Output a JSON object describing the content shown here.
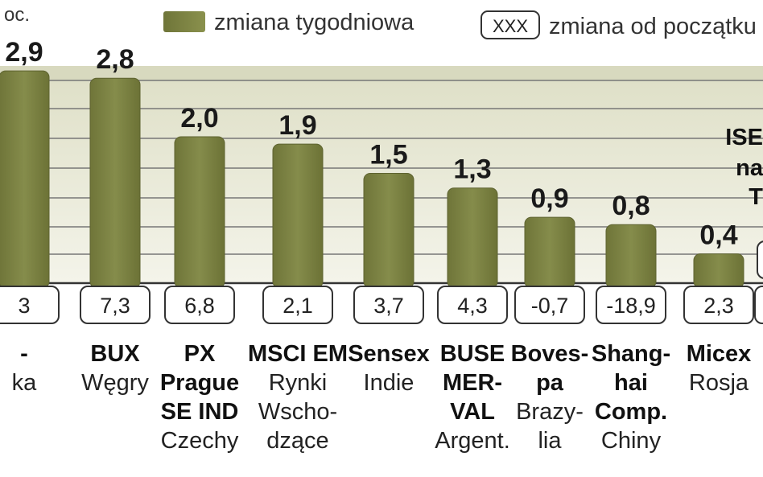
{
  "unit_label": "oc.",
  "legend": {
    "weekly_label": "zmiana tygodniowa",
    "ytd_box_text": "XXX",
    "ytd_label": "zmiana od początku"
  },
  "colors": {
    "bar": "#7a8043",
    "bar_top": "#8d9450",
    "band": "#e6e7d4",
    "gridline": "#555555",
    "box_border": "#333333"
  },
  "chart_data": {
    "type": "bar",
    "series": [
      {
        "name": "zmiana tygodniowa",
        "values": [
          2.9,
          2.8,
          2.0,
          1.9,
          1.5,
          1.3,
          0.9,
          0.8,
          0.4
        ]
      },
      {
        "name": "zmiana od początku",
        "values": [
          "3",
          "7,3",
          "6,8",
          "2,1",
          "3,7",
          "4,3",
          "-0,7",
          "-18,9",
          "2,3"
        ]
      }
    ],
    "value_labels": [
      "2,9",
      "2,8",
      "2,0",
      "1,9",
      "1,5",
      "1,3",
      "0,9",
      "0,8",
      "0,4"
    ],
    "names": [
      {
        "bold": [
          "-"
        ],
        "regular": [
          "ka"
        ]
      },
      {
        "bold": [
          "BUX"
        ],
        "regular": [
          "Węgry"
        ]
      },
      {
        "bold": [
          "PX",
          "Prague",
          "SE IND"
        ],
        "regular": [
          "Czechy"
        ]
      },
      {
        "bold": [
          "MSCI EM"
        ],
        "regular": [
          "Rynki",
          "Wscho-",
          "dzące"
        ]
      },
      {
        "bold": [
          "Sensex"
        ],
        "regular": [
          "Indie"
        ]
      },
      {
        "bold": [
          "BUSE",
          "MER-",
          "VAL"
        ],
        "regular": [
          "Argent."
        ]
      },
      {
        "bold": [
          "Boves-",
          "pa"
        ],
        "regular": [
          "Brazy-",
          "lia"
        ]
      },
      {
        "bold": [
          "Shang-",
          "hai",
          "Comp."
        ],
        "regular": [
          "Chiny"
        ]
      },
      {
        "bold": [
          "Micex"
        ],
        "regular": [
          "Rosja"
        ]
      }
    ],
    "partial_annotation": {
      "lines": [
        "ISE",
        "na",
        "T"
      ],
      "box_text": ""
    },
    "ylim": [
      0,
      3.0
    ],
    "grid": true
  }
}
